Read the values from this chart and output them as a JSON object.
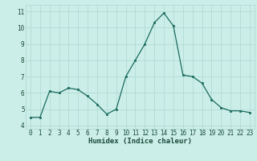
{
  "x": [
    0,
    1,
    2,
    3,
    4,
    5,
    6,
    7,
    8,
    9,
    10,
    11,
    12,
    13,
    14,
    15,
    16,
    17,
    18,
    19,
    20,
    21,
    22,
    23
  ],
  "y": [
    4.5,
    4.5,
    6.1,
    6.0,
    6.3,
    6.2,
    5.8,
    5.3,
    4.7,
    5.0,
    7.0,
    8.0,
    9.0,
    10.3,
    10.9,
    10.1,
    7.1,
    7.0,
    6.6,
    5.6,
    5.1,
    4.9,
    4.9,
    4.8
  ],
  "xlabel": "Humidex (Indice chaleur)",
  "ylim": [
    3.8,
    11.4
  ],
  "xlim": [
    -0.5,
    23.5
  ],
  "yticks": [
    4,
    5,
    6,
    7,
    8,
    9,
    10,
    11
  ],
  "xticks": [
    0,
    1,
    2,
    3,
    4,
    5,
    6,
    7,
    8,
    9,
    10,
    11,
    12,
    13,
    14,
    15,
    16,
    17,
    18,
    19,
    20,
    21,
    22,
    23
  ],
  "line_color": "#1a6b5e",
  "marker_color": "#1a6b5e",
  "bg_color": "#cceee8",
  "grid_color": "#aad8d0",
  "font_color": "#1a4a3a",
  "xlabel_fontsize": 6.5,
  "tick_fontsize": 5.5
}
